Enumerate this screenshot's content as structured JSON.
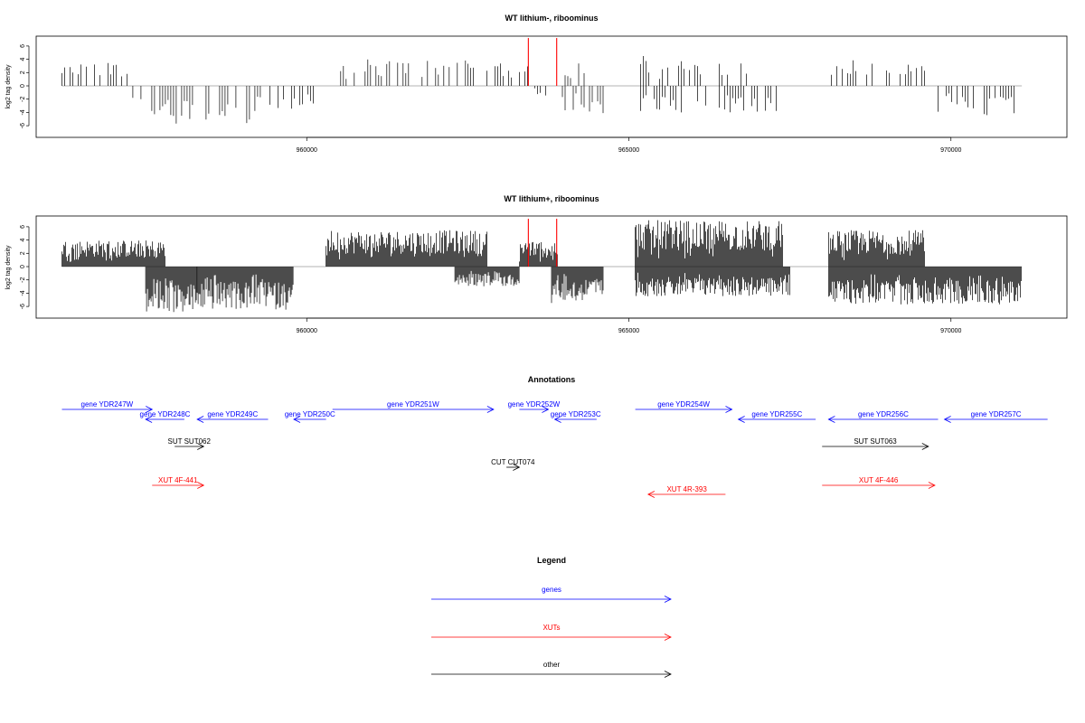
{
  "chart_data": [
    {
      "type": "bar",
      "title": "WT lithium-, riboominus",
      "ylabel": "log2 tag density",
      "xlim": [
        955800,
        971800
      ],
      "ylim": [
        -7.5,
        7.5
      ],
      "x_ticks": [
        960000,
        965000,
        970000
      ],
      "y_ticks": [
        -6,
        -4,
        -2,
        0,
        2,
        4,
        6
      ],
      "positive_color": "#000000",
      "marker_color": "#ff0000",
      "markers": [
        {
          "x": 963440,
          "y": 7.2
        },
        {
          "x": 963880,
          "y": 7.2
        }
      ],
      "density": "sparse",
      "segments": [
        {
          "start": 956200,
          "end": 957300,
          "strand": "+",
          "max": 3.5
        },
        {
          "start": 957300,
          "end": 959300,
          "strand": "-",
          "max": 5.7
        },
        {
          "start": 959300,
          "end": 960100,
          "strand": "-",
          "max": 3.5
        },
        {
          "start": 960400,
          "end": 962500,
          "strand": "+",
          "max": 4.0
        },
        {
          "start": 962500,
          "end": 963500,
          "strand": "+",
          "max": 3.4
        },
        {
          "start": 963500,
          "end": 963800,
          "strand": "-",
          "max": 2.0
        },
        {
          "start": 963800,
          "end": 964500,
          "strand": "+",
          "max": 3.8
        },
        {
          "start": 963800,
          "end": 964600,
          "strand": "-",
          "max": 4.2
        },
        {
          "start": 965100,
          "end": 966900,
          "strand": "+",
          "max": 4.6
        },
        {
          "start": 965100,
          "end": 967300,
          "strand": "-",
          "max": 4.0
        },
        {
          "start": 968100,
          "end": 968800,
          "strand": "+",
          "max": 4.0
        },
        {
          "start": 969000,
          "end": 969600,
          "strand": "+",
          "max": 3.3
        },
        {
          "start": 969800,
          "end": 971100,
          "strand": "-",
          "max": 4.6
        }
      ]
    },
    {
      "type": "bar",
      "title": "WT lithium+, riboominus",
      "ylabel": "log2 tag density",
      "xlim": [
        955800,
        971800
      ],
      "ylim": [
        -7.5,
        7.5
      ],
      "x_ticks": [
        960000,
        965000,
        970000
      ],
      "y_ticks": [
        -6,
        -4,
        -2,
        0,
        2,
        4,
        6
      ],
      "positive_color": "#000000",
      "marker_color": "#ff0000",
      "markers": [
        {
          "x": 963440,
          "y": 7.2
        },
        {
          "x": 963880,
          "y": 7.2
        }
      ],
      "density": "dense",
      "segments": [
        {
          "start": 956200,
          "end": 957800,
          "strand": "+",
          "max": 4.0
        },
        {
          "start": 957500,
          "end": 958300,
          "strand": "-",
          "max": 7.0
        },
        {
          "start": 958300,
          "end": 959800,
          "strand": "-",
          "max": 6.5
        },
        {
          "start": 960300,
          "end": 962800,
          "strand": "+",
          "max": 5.5
        },
        {
          "start": 962300,
          "end": 963300,
          "strand": "-",
          "max": 3.0
        },
        {
          "start": 963300,
          "end": 963900,
          "strand": "+",
          "max": 4.0
        },
        {
          "start": 963800,
          "end": 964600,
          "strand": "-",
          "max": 5.5
        },
        {
          "start": 965100,
          "end": 967400,
          "strand": "+",
          "max": 7.0
        },
        {
          "start": 965100,
          "end": 967500,
          "strand": "-",
          "max": 4.5
        },
        {
          "start": 968100,
          "end": 969600,
          "strand": "+",
          "max": 5.5
        },
        {
          "start": 968100,
          "end": 971100,
          "strand": "-",
          "max": 5.7
        }
      ]
    }
  ],
  "annotations": {
    "title": "Annotations",
    "xlim": [
      955800,
      971800
    ],
    "features": [
      {
        "label": "gene YDR247W",
        "start": 956200,
        "end": 957600,
        "strand": "+",
        "row": 0,
        "color": "#0000ff"
      },
      {
        "label": "gene YDR248C",
        "start": 957500,
        "end": 958100,
        "strand": "-",
        "row": 1,
        "color": "#0000ff"
      },
      {
        "label": "gene YDR249C",
        "start": 958300,
        "end": 959400,
        "strand": "-",
        "row": 1,
        "color": "#0000ff"
      },
      {
        "label": "gene YDR250C",
        "start": 959800,
        "end": 960300,
        "strand": "-",
        "row": 1,
        "color": "#0000ff"
      },
      {
        "label": "gene YDR251W",
        "start": 960400,
        "end": 962900,
        "strand": "+",
        "row": 0,
        "color": "#0000ff"
      },
      {
        "label": "gene YDR252W",
        "start": 963300,
        "end": 963750,
        "strand": "+",
        "row": 0,
        "color": "#0000ff"
      },
      {
        "label": "gene YDR253C",
        "start": 963850,
        "end": 964500,
        "strand": "-",
        "row": 1,
        "color": "#0000ff"
      },
      {
        "label": "gene YDR254W",
        "start": 965100,
        "end": 966600,
        "strand": "+",
        "row": 0,
        "color": "#0000ff"
      },
      {
        "label": "gene YDR255C",
        "start": 966700,
        "end": 967900,
        "strand": "-",
        "row": 1,
        "color": "#0000ff"
      },
      {
        "label": "gene YDR256C",
        "start": 968100,
        "end": 969800,
        "strand": "-",
        "row": 1,
        "color": "#0000ff"
      },
      {
        "label": "gene YDR257C",
        "start": 969900,
        "end": 971500,
        "strand": "-",
        "row": 1,
        "color": "#0000ff"
      },
      {
        "label": "SUT SUT062",
        "start": 957950,
        "end": 958400,
        "strand": "+",
        "row": 2,
        "color": "#000000"
      },
      {
        "label": "SUT SUT063",
        "start": 968000,
        "end": 969650,
        "strand": "+",
        "row": 2,
        "color": "#000000"
      },
      {
        "label": "CUT CUT074",
        "start": 963100,
        "end": 963300,
        "strand": "+",
        "row": 3,
        "color": "#000000"
      },
      {
        "label": "XUT 4F-441",
        "start": 957600,
        "end": 958400,
        "strand": "+",
        "row": 4,
        "color": "#ff0000"
      },
      {
        "label": "XUT 4R-393",
        "start": 965300,
        "end": 966500,
        "strand": "-",
        "row": 5,
        "color": "#ff0000"
      },
      {
        "label": "XUT 4F-446",
        "start": 968000,
        "end": 969750,
        "strand": "+",
        "row": 4,
        "color": "#ff0000"
      }
    ]
  },
  "legend": {
    "title": "Legend",
    "items": [
      {
        "label": "genes",
        "color": "#0000ff"
      },
      {
        "label": "XUTs",
        "color": "#ff0000"
      },
      {
        "label": "other",
        "color": "#000000"
      }
    ]
  }
}
